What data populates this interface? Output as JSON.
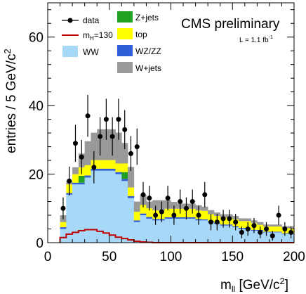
{
  "chart_data": {
    "type": "bar",
    "stacked": true,
    "header": "CMS preliminary",
    "luminosity": {
      "prefix": "L = 1.1 fb",
      "superscript": "-1"
    },
    "xlabel": {
      "base": "m",
      "subscript": "ll",
      "unit_open": " [GeV/c",
      "unit_sup": "2",
      "unit_close": "]"
    },
    "ylabel": {
      "text": "entries / 5 GeV/c",
      "sup": "2"
    },
    "xlim": [
      0,
      200
    ],
    "ylim": [
      0,
      70
    ],
    "x_ticks": [
      0,
      50,
      100,
      150,
      200
    ],
    "y_ticks": [
      0,
      20,
      40,
      60
    ],
    "bin_width": 5,
    "bin_edges_start": [
      10,
      15,
      20,
      25,
      30,
      35,
      40,
      45,
      50,
      55,
      60,
      65,
      70,
      75,
      80,
      85,
      90,
      95,
      100,
      105,
      110,
      115,
      120,
      125,
      130,
      135,
      140,
      145,
      150,
      155,
      160,
      165,
      170,
      175,
      180,
      185,
      190,
      195
    ],
    "series": [
      {
        "name": "WW",
        "color": "#a8d8f8",
        "values": [
          4,
          14,
          17,
          17,
          19,
          21,
          21,
          21,
          21,
          20,
          18,
          13,
          6,
          8,
          7,
          6.5,
          6.5,
          7,
          7,
          7,
          7,
          7,
          6.5,
          6.5,
          6,
          5.5,
          5,
          5,
          4.5,
          4,
          4,
          3.5,
          3.5,
          3,
          3,
          3,
          2.5,
          2.5
        ]
      },
      {
        "name": "WZ/ZZ",
        "color": "#3060d8",
        "values": [
          0.5,
          0.5,
          0.5,
          0.5,
          0.6,
          0.6,
          0.6,
          0.6,
          0.6,
          0.6,
          0.6,
          0.6,
          0.5,
          0.5,
          0.5,
          0.4,
          0.4,
          0.4,
          0.4,
          0.4,
          0.4,
          0.4,
          0.4,
          0.3,
          0.3,
          0.3,
          0.3,
          0.3,
          0.3,
          0.3,
          0.3,
          0.2,
          0.2,
          0.2,
          0.2,
          0.2,
          0.2,
          0.2
        ]
      },
      {
        "name": "Z+jets",
        "color": "#22a022",
        "values": [
          0,
          0,
          0,
          2,
          0,
          0,
          0,
          0,
          0,
          0,
          2,
          0,
          0,
          0,
          0,
          0,
          0,
          0,
          0,
          0,
          0,
          0,
          0,
          0,
          0,
          0,
          0,
          0,
          0,
          0,
          0,
          0,
          0,
          0,
          0,
          0,
          0,
          0
        ]
      },
      {
        "name": "top",
        "color": "#ffff00",
        "values": [
          1.5,
          2.5,
          2.5,
          2.5,
          3,
          2.5,
          2.5,
          2.5,
          2.5,
          2.5,
          2.5,
          2.5,
          2.5,
          2.5,
          2.5,
          2.5,
          2.5,
          2.5,
          2.5,
          2.5,
          2.5,
          2.5,
          2.5,
          2.5,
          2,
          2,
          2,
          2,
          2,
          2,
          2,
          2,
          1.5,
          1.5,
          1.5,
          1.5,
          1.5,
          1.5
        ]
      },
      {
        "name": "W+jets",
        "color": "#999999",
        "values": [
          2,
          1,
          2,
          4,
          7,
          8,
          9,
          9,
          9,
          9,
          6,
          6,
          3,
          3,
          2,
          3,
          3,
          2.5,
          2,
          1.5,
          1.5,
          1.5,
          1.5,
          1.2,
          1.2,
          1,
          1,
          1,
          1,
          0.8,
          0.8,
          0.8,
          0.8,
          0.6,
          0.6,
          0.6,
          0.6,
          0.6
        ]
      }
    ],
    "signal": {
      "name": "m_H=130",
      "label_base": "m",
      "label_sub": "H",
      "label_rest": "=130",
      "color": "#c00000",
      "values": [
        1.5,
        2.5,
        3,
        3.5,
        3.8,
        3.8,
        3.3,
        2.8,
        2.2,
        1.6,
        1.2,
        0.8,
        0.4,
        0.2,
        0.1,
        0,
        0,
        0,
        0,
        0,
        0,
        0,
        0,
        0,
        0,
        0,
        0,
        0,
        0,
        0,
        0,
        0,
        0,
        0,
        0,
        0,
        0,
        0
      ]
    },
    "data": {
      "name": "data",
      "color": "#000000",
      "x": [
        12.5,
        17.5,
        22.5,
        27.5,
        32.5,
        37.5,
        42.5,
        47.5,
        52.5,
        57.5,
        62.5,
        67.5,
        72.5,
        77.5,
        82.5,
        87.5,
        92.5,
        97.5,
        102.5,
        107.5,
        112.5,
        117.5,
        122.5,
        127.5,
        132.5,
        137.5,
        142.5,
        147.5,
        152.5,
        157.5,
        162.5,
        167.5,
        172.5,
        177.5,
        182.5,
        187.5,
        192.5,
        197.5
      ],
      "y": [
        10,
        18,
        29,
        25,
        37,
        22,
        31,
        36,
        31,
        36,
        33,
        26,
        28,
        14,
        13,
        8,
        9,
        13,
        8,
        12,
        10,
        12,
        8,
        14,
        6,
        6,
        7,
        7,
        6,
        3,
        4,
        5,
        3,
        4,
        2,
        8,
        4,
        3
      ],
      "err": [
        3.2,
        4.2,
        5.4,
        5,
        6.1,
        4.7,
        5.6,
        6,
        5.6,
        6,
        5.7,
        5.1,
        5.3,
        3.7,
        3.6,
        2.8,
        3,
        3.6,
        2.8,
        3.5,
        3.2,
        3.5,
        2.8,
        3.7,
        2.4,
        2.4,
        2.6,
        2.6,
        2.4,
        1.7,
        2,
        2.2,
        1.7,
        2,
        1.4,
        2.8,
        2,
        1.7
      ]
    },
    "legend": [
      {
        "label": "data",
        "kind": "marker"
      },
      {
        "label": "Z+jets",
        "kind": "box",
        "color": "#22a022"
      },
      {
        "label": "m_H=130",
        "kind": "line",
        "color": "#c00000"
      },
      {
        "label": "top",
        "kind": "box",
        "color": "#ffff00"
      },
      {
        "label": "WW",
        "kind": "box",
        "color": "#a8d8f8"
      },
      {
        "label": "WZ/ZZ",
        "kind": "box",
        "color": "#3060d8"
      },
      {
        "label": "W+jets",
        "kind": "box",
        "color": "#999999"
      }
    ]
  }
}
